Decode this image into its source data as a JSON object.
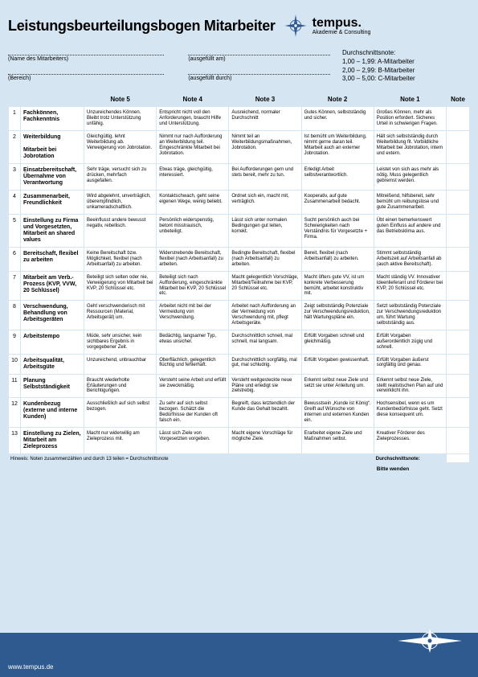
{
  "title": "Leistungsbeurteilungsbogen Mitarbeiter",
  "brand": {
    "name": "tempus.",
    "sub": "Akademie & Consulting"
  },
  "intro": {
    "name_label": "(Name des Mitarbeiters)",
    "filled_on": "(ausgefüllt am)",
    "division": "(Bereich)",
    "filled_by": "(ausgefüllt durch)"
  },
  "grades": {
    "title": "Durchschnittsnote:",
    "a": "1,00 – 1,99: A-Mitarbeiter",
    "b": "2,00 – 2,99: B-Mitarbeiter",
    "c": "3,00 – 5,00: C-Mitarbeiter"
  },
  "cols": [
    "Note 5",
    "Note 4",
    "Note 3",
    "Note 2",
    "Note 1",
    "Note"
  ],
  "rows": [
    {
      "n": "1",
      "h": "Fachkönnen, Fachkenntnis",
      "c": [
        "Unzureichendes Können. Bleibt trotz Unterstützung unfähig.",
        "Entspricht nicht voll den Anforderungen, braucht Hilfe und Unterstützung.",
        "Ausreichend, normaler Durchschnitt",
        "Gutes Können, selbstständig und sicher.",
        "Großes Können, mehr als Position erfordert. Sicheres Urteil in schwierigen Fragen."
      ]
    },
    {
      "n": "2",
      "h": "Weiterbildung\n\nMitarbeit bei Jobrotation",
      "c": [
        "Gleichgültig, lehnt Weiterbildung ab. Verweigerung von Jobrotation.",
        "Nimmt nur nach Aufforderung an Weiterbildung teil. Eingeschränkte Mitarbeit bei Jobrotation.",
        "Nimmt teil an Weiterbildungsmaßnahmen, Jobrotation.",
        "Ist bemüht um Weiterbildung, nimmt gerne daran teil. Mitarbeit auch an externer Jobrotation.",
        "Hält sich selbstständig durch Weiterbildung fit. Vorbildliche Mitarbeit bei Jobrotation, intern und extern."
      ]
    },
    {
      "n": "3",
      "h": "Einsatzbereitschaft, Übernahme von Verantwortung",
      "c": [
        "Sehr träge, versucht sich zu drücken, mehrfach ausgefallen.",
        "Etwas träge, gleichgültig, interessiert.",
        "Bei Aufforderungen gern und stets bereit, mehr zu tun.",
        "Erledigt Arbeit selbstverantwortlich.",
        "Leistet von sich aus mehr als nötig. Muss gelegentlich gebremst werden."
      ]
    },
    {
      "n": "4",
      "h": "Zusammenarbeit, Freundlichkeit",
      "c": [
        "Wird abgelehnt, unverträglich, überempfindlich, unkameradschaftlich.",
        "Kontaktschwach, geht seine eigenen Wege, wenig beliebt.",
        "Ordnet sich ein, macht mit, verträglich.",
        "Kooperativ, auf gute Zusammenarbeit bedacht.",
        "Mitreißend, hilfsbereit, sehr bemüht um reibungslose und gute Zusammenarbeit."
      ]
    },
    {
      "n": "5",
      "h": "Einstellung zu Firma und Vorgesetzten, Mitarbeit an shared values",
      "c": [
        "Beeinflusst andere bewusst negativ, rebellisch.",
        "Persönlich widerspenstig, betont misstrauisch, unbeteiligt.",
        "Lässt sich unter normalen Bedingungen gut leiten, korrekt.",
        "Sucht persönlich auch bei Schwierigkeiten nach Verständnis für Vorgesetzte + Firma.",
        "Übt einen bemerkenswert guten Einfluss auf andere und das Betriebsklima aus."
      ]
    },
    {
      "n": "6",
      "h": "Bereitschaft, flexibel zu arbeiten",
      "c": [
        "Keine Bereitschaft bzw. Möglichkeit, flexibel (nach Arbeitsanfall) zu arbeiten.",
        "Widerstrebende Bereitschaft, flexibel (nach Arbeitsanfall) zu arbeiten.",
        "Bedingte Bereitschaft, flexibel (nach Arbeitsanfall) zu arbeiten.",
        "Bereit, flexibel (nach Arbeitsanfall) zu arbeiten.",
        "Stimmt selbstständig Arbeitszeit auf Arbeitsanfall ab (auch aktive Bereitschaft)."
      ]
    },
    {
      "n": "7",
      "h": "Mitarbeit am Verb.-Prozess (KVP, VVW, 20 Schlüssel)",
      "c": [
        "Beteiligt sich selten oder nie, Verweigerung von Mitarbeit bei KVP, 20 Schlüssel etc.",
        "Beteiligt sich nach Aufforderung, eingeschränkte Mitarbeit bei KVP, 20 Schlüssel etc.",
        "Macht gelegentlich Vorschläge, Mitarbeit/Teilnahme bei KVP, 20 Schlüssel etc.",
        "Macht öfters gute VV, ist um konkrete Verbesserung bemüht, arbeitet konstruktiv mit.",
        "Macht ständig VV. Innovativer Ideenlieferant und Förderer bei KVP, 20 Schlüssel etc."
      ]
    },
    {
      "n": "8",
      "h": "Verschwendung, Behandlung von Arbeitsgeräten",
      "c": [
        "Geht verschwenderisch mit Ressourcen (Material, Arbeitsgerät) um.",
        "Arbeitet nicht mit bei der Vermeidung von Verschwendung.",
        "Arbeitet nach Aufforderung an der Vermeidung von Verschwendung mit, pflegt Arbeitsgeräte.",
        "Zeigt selbstständig Potenziale zur Verschwendungsreduktion, hält Wartungspläne ein.",
        "Setzt selbstständig Potenziale zur Verschwendungsreduktion um, führt Wartung selbstständig aus."
      ]
    },
    {
      "n": "9",
      "h": "Arbeitstempo",
      "c": [
        "Müde, sehr unsicher, kein sichtbares Ergebnis in vorgegebener Zeit.",
        "Bedächtig, langsamer Typ, etwas unsicher.",
        "Durchschnittlich schnell, mal schnell, mal langsam.",
        "Erfüllt Vorgaben schnell und gleichmäßig.",
        "Erfüllt Vorgaben außerordentlich zügig und schnell."
      ]
    },
    {
      "n": "10",
      "h": "Arbeitsqualität, Arbeitsgüte",
      "c": [
        "Unzureichend, unbrauchbar",
        "Oberflächlich, gelegentlich flüchtig und fehlerhaft.",
        "Durchschnittlich sorgfältig, mal gut, mal schludrig.",
        "Erfüllt Vorgaben gewissenhaft.",
        "Erfüllt Vorgaben äußerst sorgfältig und genau."
      ]
    },
    {
      "n": "11",
      "h": "Planung Selbstständigkeit",
      "c": [
        "Braucht wiederholte Erläuterungen und Berichtigungen.",
        "Versteht seine Arbeit und erfüllt sie zweckmäßig.",
        "Versteht weitgesteckte neue Pläne und erledigt sie zielstrebig.",
        "Erkennt selbst neue Ziele und setzt sie unter Anleitung um.",
        "Erkennt selbst neue Ziele, stellt realistischen Plan auf und verwirklicht ihn."
      ]
    },
    {
      "n": "12",
      "h": "Kundenbezug (externe und interne Kunden)",
      "c": [
        "Ausschließlich auf sich selbst bezogen.",
        "Zu sehr auf sich selbst bezogen. Schätzt die Bedürfnisse der Kunden oft falsch ein.",
        "Begreift, dass letztendlich der Kunde das Gehalt bezahlt.",
        "Bewusstsein „Kunde ist König“. Greift auf Wünsche von internen und externen Kunden ein.",
        "Hochsensibel, wenn es um Kundenbedürfnisse geht. Setzt diese konsequent um."
      ]
    },
    {
      "n": "13",
      "h": "Einstellung zu Zielen, Mitarbeit am Zieleprozess",
      "c": [
        "Macht nur widerwillig am Zieleprozess mit.",
        "Lässt sich Ziele von Vorgesetzten vorgeben.",
        "Macht eigene Vorschläge für mögliche Ziele.",
        "Erarbeitet eigene Ziele und Maßnahmen selbst.",
        "Kreativer Förderer des Zieleprozesses."
      ]
    }
  ],
  "hint": "Hinweis: Noten zusammenzählen und durch 13 teilen = Durchschnittsnote",
  "avg_label": "Durchschnittsnote:",
  "turn": "Bitte wenden",
  "footer_url": "www.tempus.de"
}
